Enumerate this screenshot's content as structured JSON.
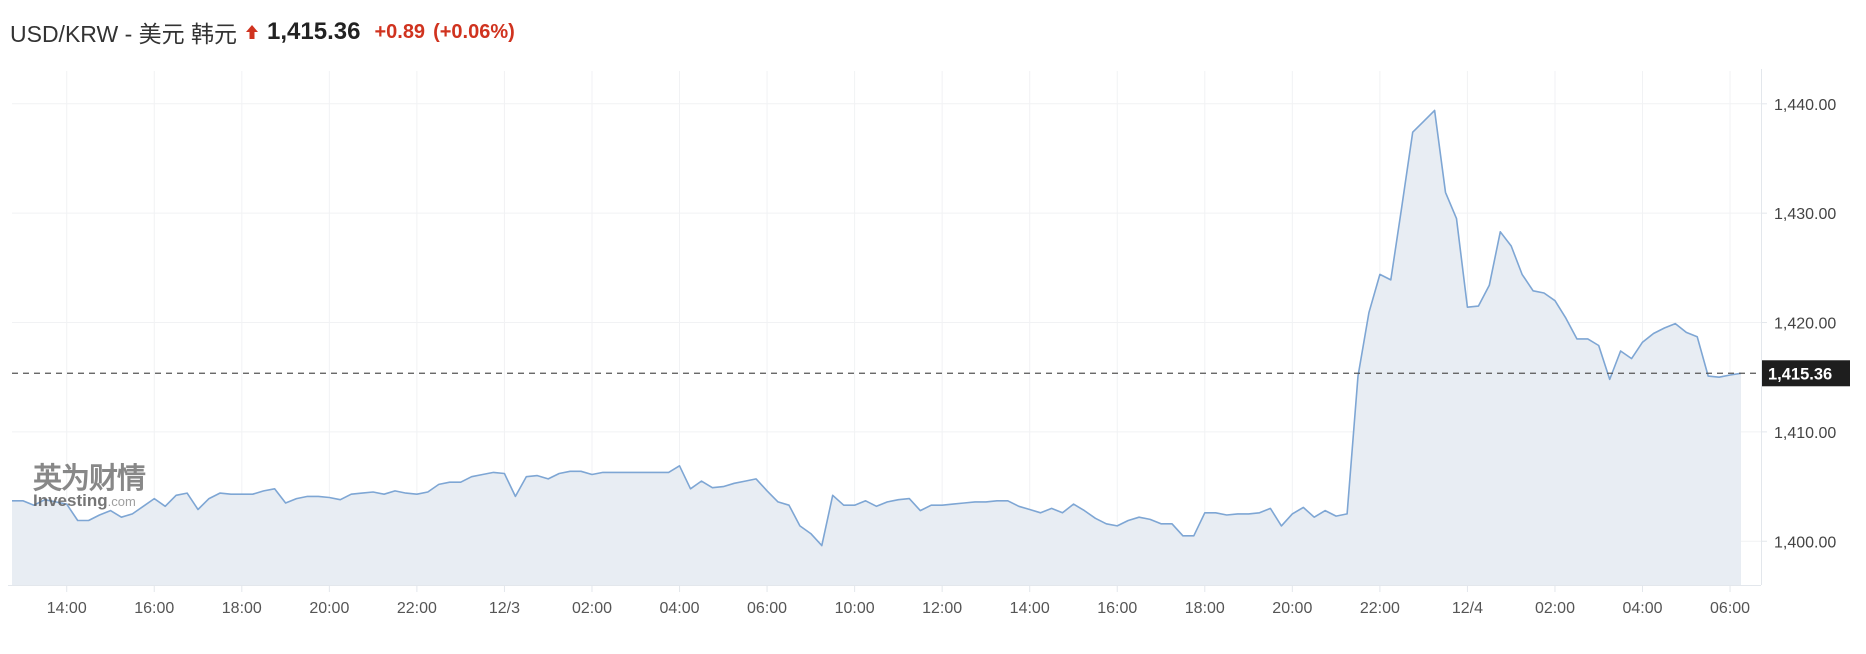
{
  "header": {
    "title": "USD/KRW - 美元 韩元",
    "direction_icon": "arrow-up-icon",
    "price": "1,415.36",
    "change": "+0.89",
    "change_pct": "(+0.06%)",
    "up_color": "#d0331f"
  },
  "watermark": {
    "cn": "英为财情",
    "en": "Investing",
    "en_suffix": ".com"
  },
  "chart_data": {
    "type": "area",
    "title": "",
    "xlabel": "",
    "ylabel": "",
    "ylim": [
      1396,
      1443
    ],
    "grid": true,
    "line_color": "#7ea6d4",
    "fill_color": "#e8edf3",
    "interval_minutes": 15,
    "segments": [
      {
        "start": "12/2 12:45",
        "values": [
          1403.7,
          1403.7,
          1403.3,
          1403.8,
          1403.6,
          1403.4,
          1401.9,
          1401.9,
          1402.4,
          1402.8,
          1402.2,
          1402.5,
          1403.2,
          1403.9,
          1403.2,
          1404.2,
          1404.4,
          1402.9,
          1403.9,
          1404.4,
          1404.3,
          1404.3,
          1404.3,
          1404.6,
          1404.8,
          1403.5,
          1403.9,
          1404.1,
          1404.1,
          1404.0,
          1403.8,
          1404.3,
          1404.4,
          1404.5,
          1404.3,
          1404.6,
          1404.4,
          1404.3,
          1404.5,
          1405.2,
          1405.4,
          1405.4,
          1405.9,
          1406.1,
          1406.3,
          1406.2,
          1404.1,
          1405.9,
          1406.0,
          1405.7,
          1406.2,
          1406.4,
          1406.4,
          1406.1,
          1406.3,
          1406.3,
          1406.3,
          1406.3,
          1406.3,
          1406.3,
          1406.3,
          1406.9,
          1404.8,
          1405.5,
          1404.9,
          1405.0,
          1405.3,
          1405.5,
          1405.7,
          1404.6,
          1403.6,
          1403.3,
          1401.4,
          1400.7,
          1399.6
        ]
      },
      {
        "start": "12/3 09:30",
        "values": [
          1404.2,
          1403.3,
          1403.3,
          1403.7,
          1403.2,
          1403.6,
          1403.8,
          1403.9,
          1402.8,
          1403.3,
          1403.3,
          1403.4,
          1403.5,
          1403.6,
          1403.6,
          1403.7,
          1403.7,
          1403.2,
          1402.9,
          1402.6,
          1403.0,
          1402.6,
          1403.4,
          1402.8,
          1402.1,
          1401.6,
          1401.4,
          1401.9,
          1402.2,
          1402.0,
          1401.6,
          1401.6,
          1400.5,
          1400.5,
          1402.6,
          1402.6,
          1402.4,
          1402.5,
          1402.5,
          1402.6,
          1403.0,
          1401.4,
          1402.5,
          1403.1,
          1402.2,
          1402.8,
          1402.3,
          1402.5,
          1415.1,
          1420.9,
          1424.4,
          1423.9,
          1430.6,
          1437.4,
          1438.4,
          1439.4,
          1431.9,
          1429.5,
          1421.4,
          1421.5,
          1423.4,
          1428.3,
          1427.0,
          1424.4,
          1422.9,
          1422.7,
          1422.0,
          1420.4,
          1418.5,
          1418.5,
          1417.9,
          1414.8,
          1417.4,
          1416.7,
          1418.2,
          1419.0,
          1419.5,
          1419.9,
          1419.1,
          1418.7,
          1415.1,
          1415.0,
          1415.2,
          1415.36
        ]
      }
    ],
    "y_ticks": [
      "1,400.00",
      "1,410.00",
      "1,420.00",
      "1,430.00",
      "1,440.00"
    ],
    "y_tick_values": [
      1400,
      1410,
      1420,
      1430,
      1440
    ],
    "x_ticks": [
      {
        "label": "14:00",
        "time": "12/2 14:00"
      },
      {
        "label": "16:00",
        "time": "12/2 16:00"
      },
      {
        "label": "18:00",
        "time": "12/2 18:00"
      },
      {
        "label": "20:00",
        "time": "12/2 20:00"
      },
      {
        "label": "22:00",
        "time": "12/2 22:00"
      },
      {
        "label": "12/3",
        "time": "12/3 00:00"
      },
      {
        "label": "02:00",
        "time": "12/3 02:00"
      },
      {
        "label": "04:00",
        "time": "12/3 04:00"
      },
      {
        "label": "06:00",
        "time": "12/3 06:00"
      },
      {
        "label": "10:00",
        "time": "12/3 10:00"
      },
      {
        "label": "12:00",
        "time": "12/3 12:00"
      },
      {
        "label": "14:00",
        "time": "12/3 14:00"
      },
      {
        "label": "16:00",
        "time": "12/3 16:00"
      },
      {
        "label": "18:00",
        "time": "12/3 18:00"
      },
      {
        "label": "20:00",
        "time": "12/3 20:00"
      },
      {
        "label": "22:00",
        "time": "12/3 22:00"
      },
      {
        "label": "12/4",
        "time": "12/4 00:00"
      },
      {
        "label": "02:00",
        "time": "12/4 02:00"
      },
      {
        "label": "04:00",
        "time": "12/4 04:00"
      },
      {
        "label": "06:00",
        "time": "12/4 06:00"
      }
    ],
    "current_value": 1415.36,
    "current_label": "1,415.36"
  }
}
